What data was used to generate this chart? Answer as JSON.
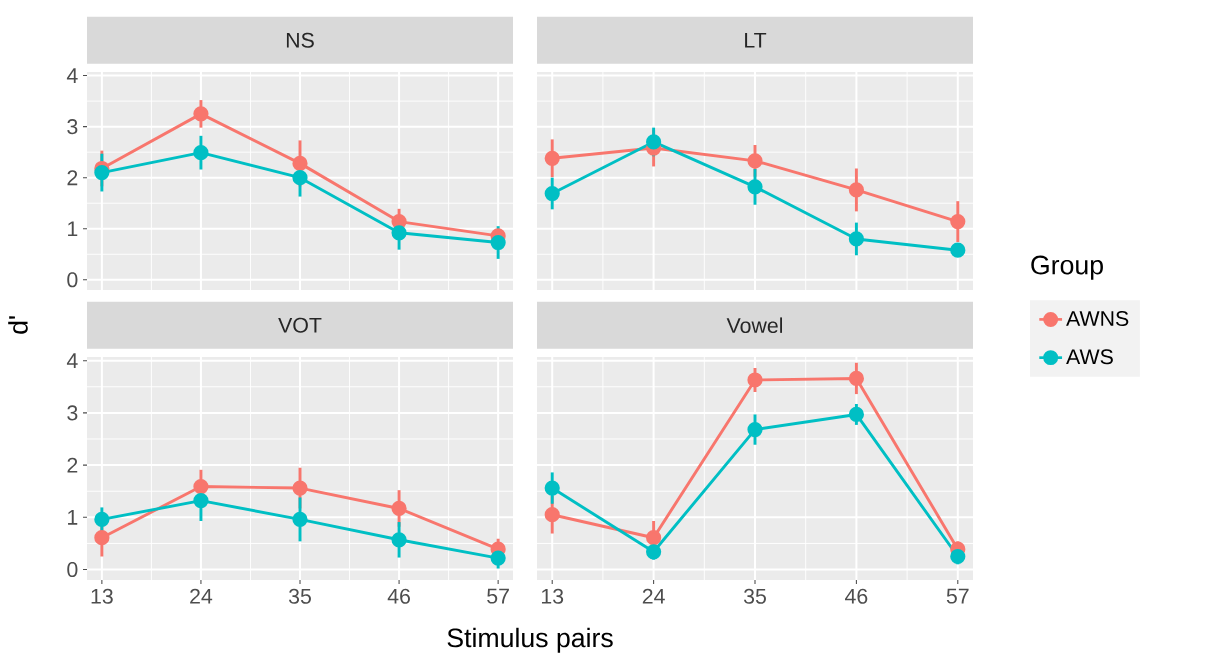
{
  "chart_data": [
    {
      "type": "line",
      "title": "NS",
      "ylabel": "d'",
      "categories": [
        "13",
        "24",
        "35",
        "46",
        "57"
      ],
      "ylim": [
        -0.2,
        4.07
      ],
      "yticks": [
        0,
        1,
        2,
        3,
        4
      ],
      "grid": true,
      "marker": "circle",
      "line_style": "solid",
      "tick_labels": "y",
      "series": [
        {
          "color": "#f8766d",
          "values": [
            2.18,
            3.25,
            2.28,
            1.14,
            0.86
          ],
          "errors": [
            0.35,
            0.27,
            0.45,
            0.25,
            null
          ]
        },
        {
          "color": "#00bfc4",
          "values": [
            2.1,
            2.49,
            2.0,
            0.92,
            0.73
          ],
          "errors": [
            0.37,
            0.33,
            0.37,
            0.33,
            0.32
          ]
        }
      ]
    },
    {
      "type": "line",
      "title": "LT",
      "categories": [
        "13",
        "24",
        "35",
        "46",
        "57"
      ],
      "ylim": [
        -0.2,
        4.07
      ],
      "yticks": [
        0,
        1,
        2,
        3,
        4
      ],
      "grid": true,
      "marker": "circle",
      "line_style": "solid",
      "tick_labels": false,
      "legend": "right",
      "legend_title": "Group",
      "series": [
        {
          "name": "AWNS",
          "color": "#f8766d",
          "values": [
            2.38,
            2.58,
            2.33,
            1.76,
            1.14
          ],
          "errors": [
            0.37,
            0.36,
            0.31,
            0.42,
            0.4
          ]
        },
        {
          "name": "AWS",
          "color": "#00bfc4",
          "values": [
            1.69,
            2.7,
            1.82,
            0.8,
            0.58
          ],
          "errors": [
            0.31,
            0.28,
            0.35,
            0.32,
            null
          ]
        }
      ]
    },
    {
      "type": "line",
      "title": "VOT",
      "xlabel": "Stimulus pairs",
      "categories": [
        "13",
        "24",
        "35",
        "46",
        "57"
      ],
      "ylim": [
        -0.2,
        4.07
      ],
      "yticks": [
        0,
        1,
        2,
        3,
        4
      ],
      "grid": true,
      "marker": "circle",
      "line_style": "solid",
      "series": [
        {
          "color": "#f8766d",
          "values": [
            0.61,
            1.59,
            1.56,
            1.17,
            0.39
          ],
          "errors": [
            0.36,
            0.32,
            0.39,
            0.35,
            0.2
          ]
        },
        {
          "color": "#00bfc4",
          "values": [
            0.96,
            1.32,
            0.96,
            0.57,
            0.22
          ],
          "errors": [
            0.23,
            0.39,
            0.42,
            0.34,
            0.2
          ]
        }
      ]
    },
    {
      "type": "line",
      "title": "Vowel",
      "categories": [
        "13",
        "24",
        "35",
        "46",
        "57"
      ],
      "ylim": [
        -0.2,
        4.07
      ],
      "yticks": [
        0,
        1,
        2,
        3,
        4
      ],
      "grid": true,
      "marker": "circle",
      "line_style": "solid",
      "tick_labels": "x",
      "series": [
        {
          "color": "#f8766d",
          "values": [
            1.05,
            0.61,
            3.63,
            3.66,
            0.39
          ],
          "errors": [
            0.36,
            0.32,
            0.23,
            0.3,
            0.15
          ]
        },
        {
          "color": "#00bfc4",
          "values": [
            1.56,
            0.34,
            2.68,
            2.97,
            0.25
          ],
          "errors": [
            0.3,
            0.15,
            0.29,
            0.2,
            0.15
          ]
        }
      ]
    }
  ]
}
